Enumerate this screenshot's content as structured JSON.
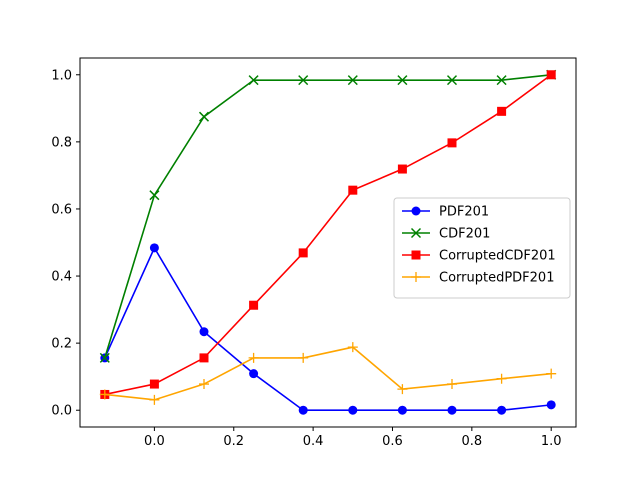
{
  "chart_data": {
    "type": "line",
    "title": "",
    "xlabel": "",
    "ylabel": "",
    "xlim": [
      -0.1875,
      1.0625
    ],
    "ylim": [
      -0.05,
      1.05
    ],
    "xticks": [
      0.0,
      0.2,
      0.4,
      0.6,
      0.8,
      1.0
    ],
    "xtick_labels": [
      "0.0",
      "0.2",
      "0.4",
      "0.6",
      "0.8",
      "1.0"
    ],
    "yticks": [
      0.0,
      0.2,
      0.4,
      0.6,
      0.8,
      1.0
    ],
    "ytick_labels": [
      "0.0",
      "0.2",
      "0.4",
      "0.6",
      "0.8",
      "1.0"
    ],
    "grid": false,
    "legend_position": "center-right",
    "x": [
      -0.125,
      0.0,
      0.125,
      0.25,
      0.375,
      0.5,
      0.625,
      0.75,
      0.875,
      1.0
    ],
    "series": [
      {
        "name": "PDF201",
        "color": "#0000ff",
        "marker": "circle",
        "values": [
          0.156,
          0.484,
          0.234,
          0.109,
          0.0,
          0.0,
          0.0,
          0.0,
          0.0,
          0.016
        ]
      },
      {
        "name": "CDF201",
        "color": "#008000",
        "marker": "x",
        "values": [
          0.156,
          0.641,
          0.875,
          0.984,
          0.984,
          0.984,
          0.984,
          0.984,
          0.984,
          1.0
        ]
      },
      {
        "name": "CorruptedCDF201",
        "color": "#ff0000",
        "marker": "square",
        "values": [
          0.047,
          0.078,
          0.156,
          0.313,
          0.469,
          0.656,
          0.719,
          0.797,
          0.891,
          1.0
        ]
      },
      {
        "name": "CorruptedPDF201",
        "color": "#ffa500",
        "marker": "plus",
        "values": [
          0.047,
          0.031,
          0.078,
          0.156,
          0.156,
          0.188,
          0.063,
          0.078,
          0.094,
          0.109
        ]
      }
    ]
  }
}
